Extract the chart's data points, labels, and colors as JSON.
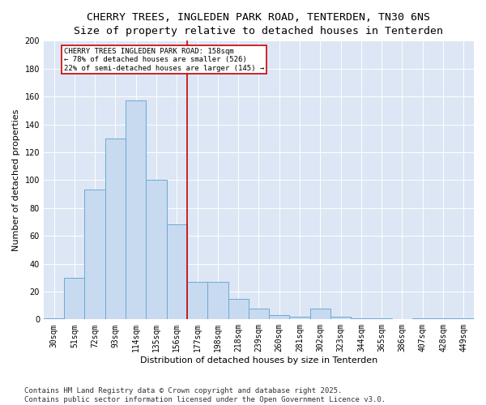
{
  "title_line1": "CHERRY TREES, INGLEDEN PARK ROAD, TENTERDEN, TN30 6NS",
  "title_line2": "Size of property relative to detached houses in Tenterden",
  "xlabel": "Distribution of detached houses by size in Tenterden",
  "ylabel": "Number of detached properties",
  "categories": [
    "30sqm",
    "51sqm",
    "72sqm",
    "93sqm",
    "114sqm",
    "135sqm",
    "156sqm",
    "177sqm",
    "198sqm",
    "218sqm",
    "239sqm",
    "260sqm",
    "281sqm",
    "302sqm",
    "323sqm",
    "344sqm",
    "365sqm",
    "386sqm",
    "407sqm",
    "428sqm",
    "449sqm"
  ],
  "values": [
    1,
    30,
    93,
    130,
    157,
    100,
    68,
    27,
    27,
    15,
    8,
    3,
    2,
    8,
    2,
    1,
    1,
    0,
    1,
    1,
    1
  ],
  "bar_color": "#c8daf0",
  "bar_edge_color": "#6aaad4",
  "vline_index": 6.5,
  "vline_color": "#cc0000",
  "annotation_title": "CHERRY TREES INGLEDEN PARK ROAD: 158sqm",
  "annotation_line1": "← 78% of detached houses are smaller (526)",
  "annotation_line2": "22% of semi-detached houses are larger (145) →",
  "annotation_box_color": "#cc0000",
  "ylim_max": 200,
  "yticks": [
    0,
    20,
    40,
    60,
    80,
    100,
    120,
    140,
    160,
    180,
    200
  ],
  "background_color": "#dce6f4",
  "footnote_line1": "Contains HM Land Registry data © Crown copyright and database right 2025.",
  "footnote_line2": "Contains public sector information licensed under the Open Government Licence v3.0.",
  "title_fontsize": 9.5,
  "axis_label_fontsize": 8,
  "tick_fontsize": 7,
  "annotation_fontsize": 6.5,
  "footnote_fontsize": 6.5
}
